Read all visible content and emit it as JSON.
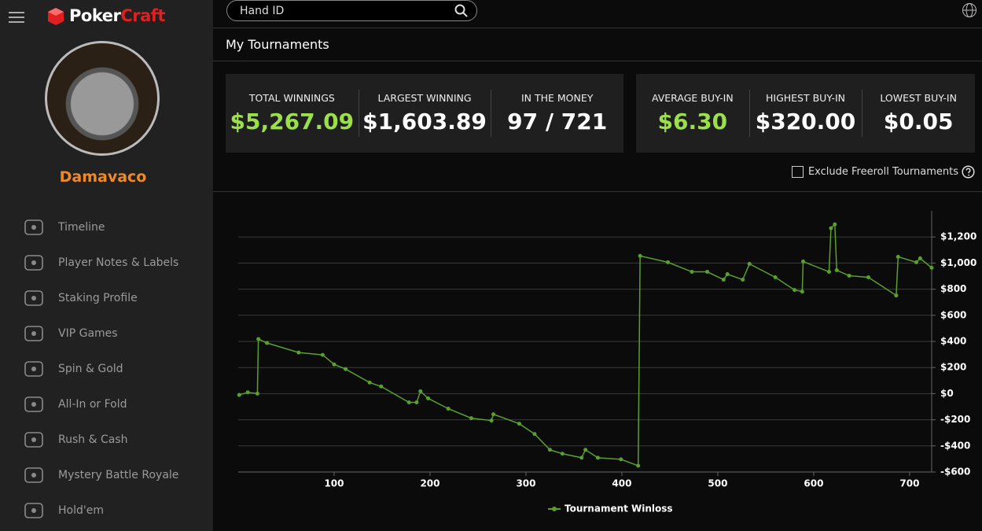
{
  "header": {
    "brand_1": "Poker",
    "brand_2": "Craft",
    "search_placeholder": "Hand ID"
  },
  "sidebar": {
    "username": "Damavaco",
    "nav": [
      "Timeline",
      "Player Notes & Labels",
      "Staking Profile",
      "VIP Games",
      "Spin & Gold",
      "All-In or Fold",
      "Rush & Cash",
      "Mystery Battle Royale",
      "Hold'em"
    ]
  },
  "page_title": "My Tournaments",
  "stats": [
    [
      {
        "label": "TOTAL WINNINGS",
        "value": "$5,267.09",
        "color": "#9be04a"
      },
      {
        "label": "LARGEST WINNING",
        "value": "$1,603.89",
        "color": "#ffffff"
      },
      {
        "label": "IN THE MONEY",
        "value": "97 / 721",
        "color": "#ffffff"
      }
    ],
    [
      {
        "label": "AVERAGE BUY-IN",
        "value": "$6.30",
        "color": "#9be04a"
      },
      {
        "label": "HIGHEST BUY-IN",
        "value": "$320.00",
        "color": "#ffffff"
      },
      {
        "label": "LOWEST BUY-IN",
        "value": "$0.05",
        "color": "#ffffff"
      }
    ]
  ],
  "exclude_freeroll": "Exclude Freeroll Tournaments",
  "chart_data": {
    "type": "line",
    "x": [
      1,
      10,
      20,
      21,
      30,
      63,
      88,
      100,
      112,
      137,
      149,
      178,
      186,
      190,
      198,
      219,
      243,
      264,
      266,
      293,
      309,
      325,
      338,
      358,
      362,
      375,
      399,
      417,
      419,
      448,
      473,
      489,
      506,
      510,
      526,
      533,
      560,
      580,
      588,
      589,
      616,
      618,
      622,
      624,
      637,
      657,
      686,
      688,
      707,
      711,
      723
    ],
    "series": [
      {
        "name": "Tournament Winloss",
        "color": "#5aa02c",
        "values": [
          -10,
          10,
          0,
          418,
          388,
          315,
          297,
          224,
          188,
          85,
          55,
          -67,
          -67,
          18,
          -36,
          -115,
          -188,
          -206,
          -158,
          -230,
          -309,
          -430,
          -460,
          -491,
          -430,
          -491,
          -503,
          -552,
          1055,
          1006,
          933,
          933,
          873,
          915,
          873,
          994,
          891,
          794,
          782,
          1012,
          933,
          1267,
          1297,
          945,
          903,
          891,
          752,
          1048,
          1006,
          1036,
          964
        ]
      }
    ],
    "xlim": [
      0,
      723
    ],
    "xticks": [
      100,
      200,
      300,
      400,
      500,
      600,
      700
    ],
    "ylim": [
      -600,
      1400
    ],
    "yticks": [
      {
        "value": -600,
        "label": "-$600"
      },
      {
        "value": -400,
        "label": "-$400"
      },
      {
        "value": -200,
        "label": "-$200"
      },
      {
        "value": 0,
        "label": "$0"
      },
      {
        "value": 200,
        "label": "$200"
      },
      {
        "value": 400,
        "label": "$400"
      },
      {
        "value": 600,
        "label": "$600"
      },
      {
        "value": 800,
        "label": "$800"
      },
      {
        "value": 1000,
        "label": "$1,000"
      },
      {
        "value": 1200,
        "label": "$1,200"
      }
    ],
    "grid": true
  }
}
